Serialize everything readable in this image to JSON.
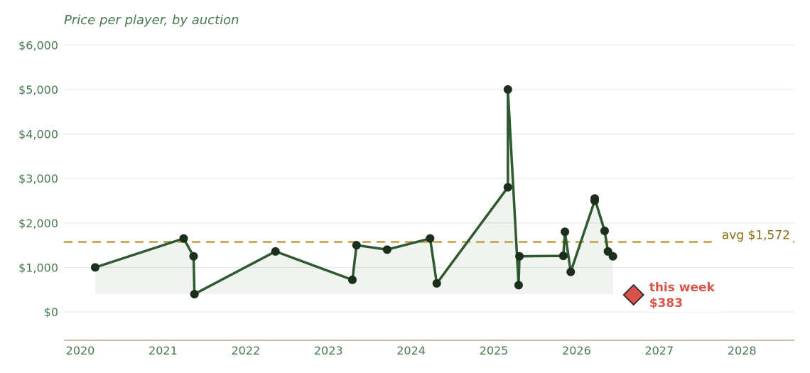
{
  "chart_data": {
    "type": "line",
    "title": "Price per player, by auction",
    "xlabel": "",
    "ylabel": "",
    "xlim": [
      2019.85,
      2028.7
    ],
    "ylim": [
      -650,
      6000
    ],
    "y_ticks": [
      0,
      1000,
      2000,
      3000,
      4000,
      5000,
      6000
    ],
    "y_tick_labels": [
      "$0",
      "$1,000",
      "$2,000",
      "$3,000",
      "$4,000",
      "$5,000",
      "$6,000"
    ],
    "x_ticks": [
      2020,
      2021,
      2022,
      2023,
      2024,
      2025,
      2026,
      2027,
      2028
    ],
    "x_tick_labels": [
      "2020",
      "2021",
      "2022",
      "2023",
      "2024",
      "2025",
      "2026",
      "2027",
      "2028"
    ],
    "grid": "horizontal",
    "series": [
      {
        "values": [
          {
            "x": 2020.18,
            "y": 1000
          },
          {
            "x": 2021.25,
            "y": 1650
          },
          {
            "x": 2021.37,
            "y": 1250
          },
          {
            "x": 2021.38,
            "y": 400
          },
          {
            "x": 2022.36,
            "y": 1360
          },
          {
            "x": 2023.29,
            "y": 720
          },
          {
            "x": 2023.34,
            "y": 1500
          },
          {
            "x": 2023.71,
            "y": 1400
          },
          {
            "x": 2024.23,
            "y": 1650
          },
          {
            "x": 2024.31,
            "y": 640
          },
          {
            "x": 2025.17,
            "y": 2800
          },
          {
            "x": 2025.17,
            "y": 5000
          },
          {
            "x": 2025.3,
            "y": 600
          },
          {
            "x": 2025.31,
            "y": 1250
          },
          {
            "x": 2025.84,
            "y": 1260
          },
          {
            "x": 2025.86,
            "y": 1800
          },
          {
            "x": 2025.93,
            "y": 900
          },
          {
            "x": 2026.22,
            "y": 2500
          },
          {
            "x": 2026.22,
            "y": 2550
          },
          {
            "x": 2026.34,
            "y": 1820
          },
          {
            "x": 2026.38,
            "y": 1360
          },
          {
            "x": 2026.44,
            "y": 1250
          }
        ],
        "color": "#2e5a30"
      }
    ],
    "band_floor": 400,
    "average": {
      "value": 1572,
      "label": "avg $1,572",
      "color": "#c9ad62"
    },
    "highlight": {
      "x": 2026.69,
      "y": 383,
      "label_line1": "this week",
      "label_line2": "$383",
      "color": "#d9534a"
    }
  }
}
